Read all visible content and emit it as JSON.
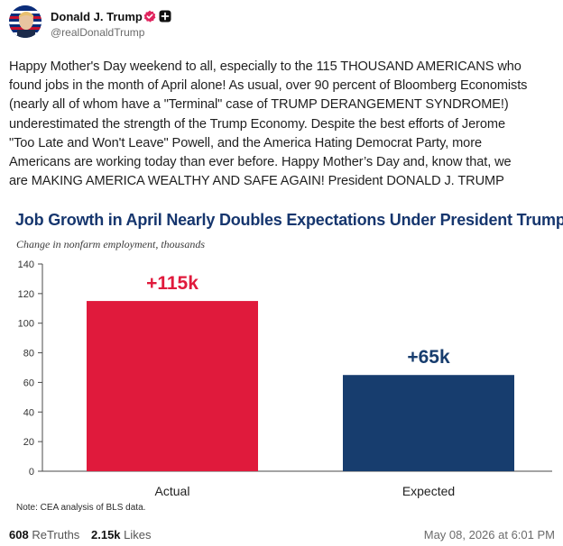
{
  "author": {
    "display_name": "Donald J. Trump",
    "handle": "@realDonaldTrump",
    "verified_badge_color": "#e0245e"
  },
  "post": {
    "text": "Happy Mother's Day weekend to all, especially to the 115 THOUSAND AMERICANS who\nfound jobs in the month of April alone! As usual, over 90 percent of Bloomberg Economists\n(nearly all of whom have a \"Terminal\" case of TRUMP DERANGEMENT SYNDROME!)\nunderestimated the strength of the Trump Economy. Despite the best efforts of Jerome\n\"Too Late and Won't Leave\" Powell, and the America Hating Democrat Party, more\nAmericans are working today than ever before. Happy Mother’s Day and, know that, we\nare MAKING AMERICA WEALTHY AND SAFE AGAIN! President DONALD J. TRUMP"
  },
  "chart": {
    "title": "Job Growth in April Nearly Doubles Expectations Under President Trump",
    "subtitle": "Change in nonfarm employment, thousands",
    "note": "Note: CEA analysis of BLS data."
  },
  "chart_data": {
    "type": "bar",
    "title": "Job Growth in April Nearly Doubles Expectations Under President Trump",
    "ylabel": "Change in nonfarm employment, thousands",
    "categories": [
      "Actual",
      "Expected"
    ],
    "values": [
      115,
      65
    ],
    "data_labels": [
      "+115k",
      "+65k"
    ],
    "colors": [
      "#e01a3c",
      "#173d6e"
    ],
    "ylim": [
      0,
      140
    ],
    "yticks": [
      0,
      20,
      40,
      60,
      80,
      100,
      120,
      140
    ],
    "grid": false,
    "legend": "none"
  },
  "stats": {
    "retruths_count": "608",
    "retruths_label": "ReTruths",
    "likes_count": "2.15k",
    "likes_label": "Likes",
    "timestamp": "May 08, 2026 at 6:01 PM"
  }
}
